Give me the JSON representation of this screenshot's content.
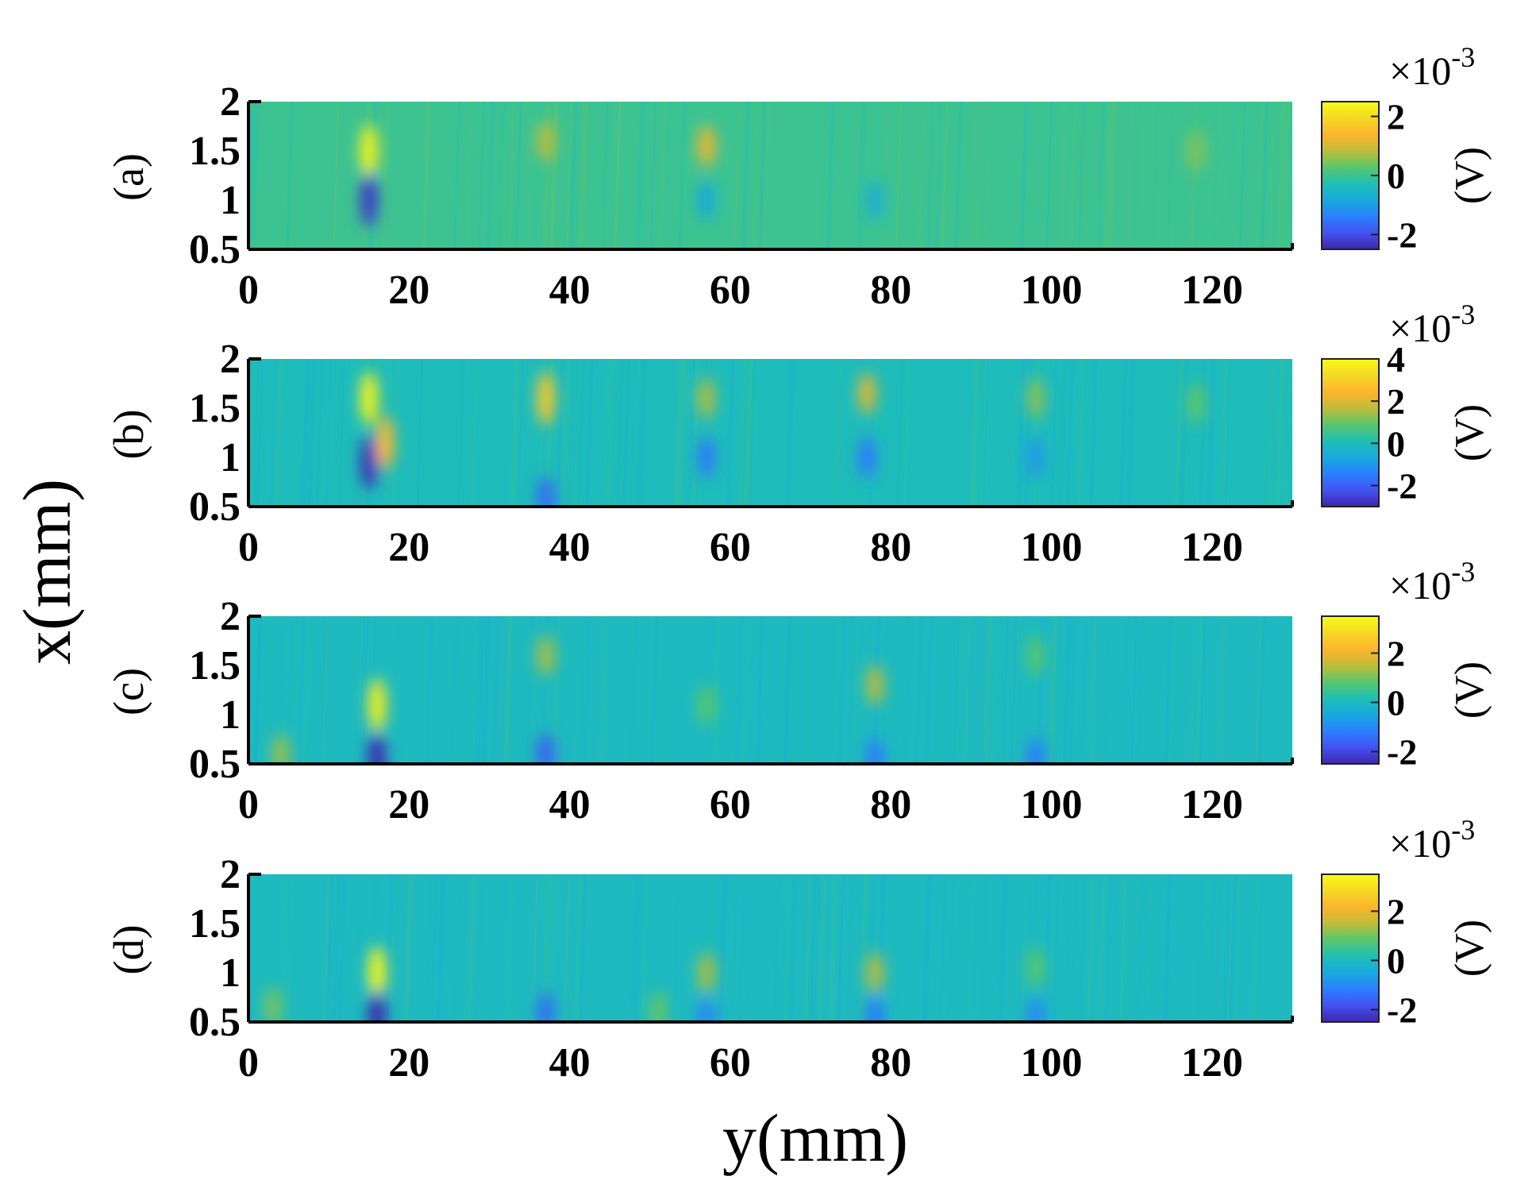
{
  "figure": {
    "xlabel": "y(mm)",
    "ylabel": "x(mm)",
    "colormap": [
      "#3e26a8",
      "#4352f1",
      "#2b7ffe",
      "#19a9df",
      "#1fbfb4",
      "#5ac66d",
      "#c0bc3a",
      "#feb52c",
      "#f4d925",
      "#f9fb15"
    ]
  },
  "chart_data": [
    {
      "type": "heatmap",
      "panel_label": "(a)",
      "xlim": [
        0,
        130
      ],
      "ylim": [
        0.5,
        2
      ],
      "x_ticks": [
        "0",
        "20",
        "40",
        "60",
        "80",
        "100",
        "120"
      ],
      "y_ticks": [
        "2",
        "1.5",
        "1",
        "0.5"
      ],
      "colorbar": {
        "exponent": "×10",
        "exponent_power": "-3",
        "unit": "(V)",
        "ticks": [
          "2",
          "0",
          "-2"
        ],
        "range": [
          -2.5,
          2.5
        ]
      },
      "features": [
        {
          "y": 15,
          "x": 1.5,
          "v": 2.3
        },
        {
          "y": 15,
          "x": 1.0,
          "v": -2.2
        },
        {
          "y": 37,
          "x": 1.6,
          "v": 0.8
        },
        {
          "y": 57,
          "x": 1.55,
          "v": 1.2
        },
        {
          "y": 57,
          "x": 1.0,
          "v": -0.8
        },
        {
          "y": 78,
          "x": 1.0,
          "v": -0.7
        },
        {
          "y": 118,
          "x": 1.5,
          "v": 0.5
        }
      ]
    },
    {
      "type": "heatmap",
      "panel_label": "(b)",
      "xlim": [
        0,
        130
      ],
      "ylim": [
        0.5,
        2
      ],
      "x_ticks": [
        "0",
        "20",
        "40",
        "60",
        "80",
        "100",
        "120"
      ],
      "y_ticks": [
        "2",
        "1.5",
        "1",
        "0.5"
      ],
      "colorbar": {
        "exponent": "×10",
        "exponent_power": "-3",
        "unit": "(V)",
        "ticks": [
          "4",
          "2",
          "0",
          "-2"
        ],
        "range": [
          -3,
          4
        ]
      },
      "features": [
        {
          "y": 15,
          "x": 1.6,
          "v": 3.8
        },
        {
          "y": 17,
          "x": 1.15,
          "v": 2.5
        },
        {
          "y": 15,
          "x": 0.95,
          "v": -2.8
        },
        {
          "y": 37,
          "x": 1.6,
          "v": 2.8
        },
        {
          "y": 37,
          "x": 0.6,
          "v": -1.8
        },
        {
          "y": 57,
          "x": 1.6,
          "v": 1.5
        },
        {
          "y": 57,
          "x": 1.0,
          "v": -1.5
        },
        {
          "y": 77,
          "x": 1.65,
          "v": 2.0
        },
        {
          "y": 77,
          "x": 1.0,
          "v": -1.5
        },
        {
          "y": 98,
          "x": 1.6,
          "v": 1.2
        },
        {
          "y": 98,
          "x": 1.0,
          "v": -1.0
        },
        {
          "y": 118,
          "x": 1.55,
          "v": 0.9
        }
      ]
    },
    {
      "type": "heatmap",
      "panel_label": "(c)",
      "xlim": [
        0,
        130
      ],
      "ylim": [
        0.5,
        2
      ],
      "x_ticks": [
        "0",
        "20",
        "40",
        "60",
        "80",
        "100",
        "120"
      ],
      "y_ticks": [
        "2",
        "1.5",
        "1",
        "0.5"
      ],
      "colorbar": {
        "exponent": "×10",
        "exponent_power": "-3",
        "unit": "(V)",
        "ticks": [
          "2",
          "0",
          "-2"
        ],
        "range": [
          -2.5,
          3.5
        ]
      },
      "features": [
        {
          "y": 16,
          "x": 1.1,
          "v": 3.2
        },
        {
          "y": 16,
          "x": 0.55,
          "v": -2.4
        },
        {
          "y": 4,
          "x": 0.6,
          "v": 1.2
        },
        {
          "y": 37,
          "x": 1.6,
          "v": 1.3
        },
        {
          "y": 37,
          "x": 0.6,
          "v": -1.6
        },
        {
          "y": 57,
          "x": 1.1,
          "v": 0.8
        },
        {
          "y": 78,
          "x": 1.3,
          "v": 1.4
        },
        {
          "y": 78,
          "x": 0.55,
          "v": -1.2
        },
        {
          "y": 98,
          "x": 1.6,
          "v": 0.8
        },
        {
          "y": 98,
          "x": 0.55,
          "v": -1.2
        }
      ]
    },
    {
      "type": "heatmap",
      "panel_label": "(d)",
      "xlim": [
        0,
        130
      ],
      "ylim": [
        0.5,
        2
      ],
      "x_ticks": [
        "0",
        "20",
        "40",
        "60",
        "80",
        "100",
        "120"
      ],
      "y_ticks": [
        "2",
        "1.5",
        "1",
        "0.5"
      ],
      "colorbar": {
        "exponent": "×10",
        "exponent_power": "-3",
        "unit": "(V)",
        "ticks": [
          "2",
          "0",
          "-2"
        ],
        "range": [
          -2.5,
          3.5
        ]
      },
      "features": [
        {
          "y": 16,
          "x": 1.0,
          "v": 3.3
        },
        {
          "y": 16,
          "x": 0.55,
          "v": -2.4
        },
        {
          "y": 3,
          "x": 0.65,
          "v": 1.0
        },
        {
          "y": 37,
          "x": 0.6,
          "v": -1.4
        },
        {
          "y": 57,
          "x": 1.0,
          "v": 1.3
        },
        {
          "y": 57,
          "x": 0.55,
          "v": -1.0
        },
        {
          "y": 78,
          "x": 1.0,
          "v": 1.4
        },
        {
          "y": 78,
          "x": 0.55,
          "v": -1.2
        },
        {
          "y": 98,
          "x": 1.05,
          "v": 0.8
        },
        {
          "y": 98,
          "x": 0.55,
          "v": -1.0
        },
        {
          "y": 51,
          "x": 0.6,
          "v": 0.9
        }
      ]
    }
  ]
}
